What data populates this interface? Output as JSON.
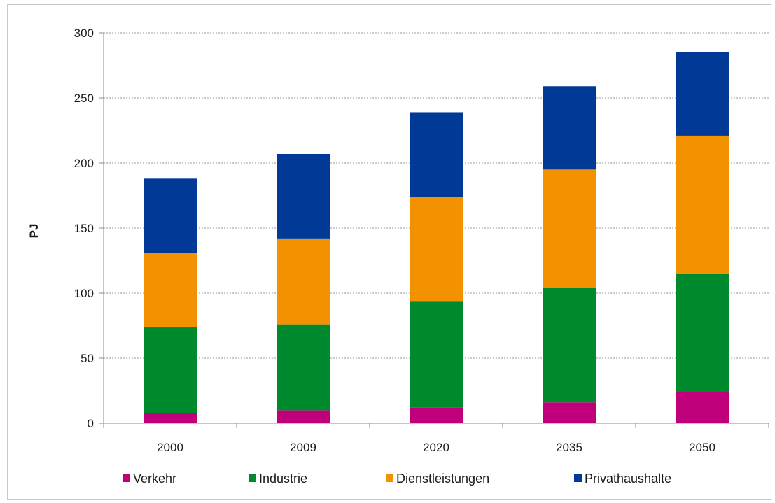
{
  "chart_data": {
    "type": "bar",
    "stacked": true,
    "title": "",
    "xlabel": "",
    "ylabel": "PJ",
    "ylim": [
      0,
      300
    ],
    "yticks": [
      0,
      50,
      100,
      150,
      200,
      250,
      300
    ],
    "grid": true,
    "legend_position": "bottom",
    "categories": [
      "2000",
      "2009",
      "2020",
      "2035",
      "2050"
    ],
    "series": [
      {
        "name": "Verkehr",
        "color": "#c0007a",
        "values": [
          8,
          10,
          12,
          16,
          24
        ]
      },
      {
        "name": "Industrie",
        "color": "#008a2e",
        "values": [
          66,
          66,
          82,
          88,
          91
        ]
      },
      {
        "name": "Dienstleistungen",
        "color": "#f39200",
        "values": [
          57,
          66,
          80,
          91,
          106
        ]
      },
      {
        "name": "Privathaushalte",
        "color": "#003a96",
        "values": [
          57,
          65,
          65,
          64,
          64
        ]
      }
    ]
  }
}
